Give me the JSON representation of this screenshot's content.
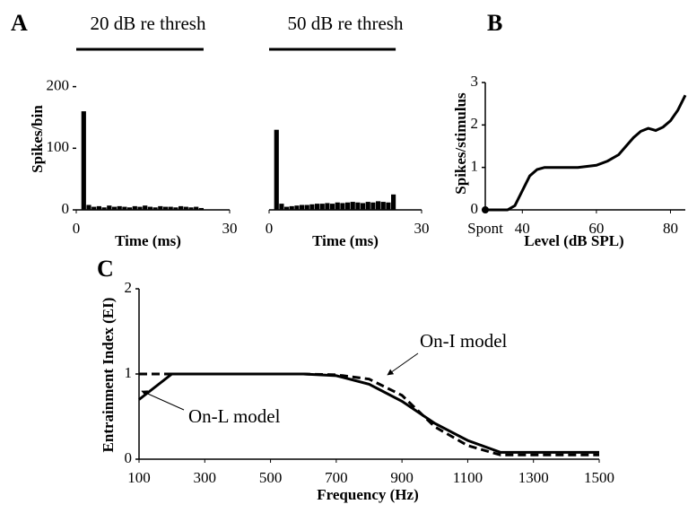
{
  "chart_data": [
    {
      "type": "histogram",
      "panel_label": "A",
      "title": "20 dB re thresh",
      "xlabel": "Time (ms)",
      "ylabel": "Spikes/bin",
      "bins": [
        0,
        1,
        2,
        3,
        4,
        5,
        6,
        7,
        8,
        9,
        10,
        11,
        12,
        13,
        14,
        15,
        16,
        17,
        18,
        19,
        20,
        21,
        22,
        23,
        24,
        25,
        26,
        27,
        28,
        29,
        30
      ],
      "counts": [
        0,
        160,
        8,
        5,
        6,
        4,
        7,
        5,
        6,
        5,
        4,
        6,
        5,
        7,
        5,
        4,
        6,
        5,
        5,
        4,
        6,
        5,
        4,
        5,
        3,
        0,
        0,
        0,
        0,
        0
      ],
      "color": "#000000",
      "xlim": [
        0,
        30
      ],
      "xticks": [
        0,
        30
      ],
      "ylim": [
        0,
        230
      ],
      "yticks": [
        0,
        100,
        200
      ]
    },
    {
      "type": "histogram",
      "title": "50 dB re thresh",
      "xlabel": "Time (ms)",
      "bins": [
        0,
        1,
        2,
        3,
        4,
        5,
        6,
        7,
        8,
        9,
        10,
        11,
        12,
        13,
        14,
        15,
        16,
        17,
        18,
        19,
        20,
        21,
        22,
        23,
        24,
        25,
        26,
        27,
        28,
        29,
        30
      ],
      "counts": [
        0,
        130,
        10,
        5,
        6,
        7,
        8,
        8,
        9,
        10,
        10,
        11,
        10,
        12,
        11,
        12,
        13,
        12,
        11,
        13,
        12,
        14,
        13,
        12,
        25,
        0,
        0,
        0,
        0,
        0
      ],
      "color": "#000000",
      "xlim": [
        0,
        30
      ],
      "xticks": [
        0,
        30
      ],
      "ylim": [
        0,
        230
      ]
    },
    {
      "type": "line",
      "panel_label": "B",
      "xlabel": "Level (dB SPL)",
      "ylabel": "Spikes/stimulus",
      "x": [
        30,
        36,
        38,
        40,
        42,
        44,
        46,
        50,
        55,
        60,
        63,
        66,
        68,
        70,
        72,
        74,
        76,
        78,
        80,
        82,
        84
      ],
      "values": [
        0,
        0,
        0.1,
        0.45,
        0.8,
        0.95,
        1,
        1,
        1,
        1.05,
        1.15,
        1.3,
        1.5,
        1.7,
        1.85,
        1.92,
        1.87,
        1.95,
        2.1,
        2.35,
        2.7
      ],
      "color": "#000000",
      "start_marker": true,
      "xlim": [
        30,
        84
      ],
      "xticks": [
        {
          "value": 30,
          "label": "Spont"
        },
        40,
        60,
        80
      ],
      "ylim": [
        0,
        3
      ],
      "yticks": [
        0,
        1,
        2,
        3
      ]
    },
    {
      "type": "line",
      "panel_label": "C",
      "xlabel": "Frequency (Hz)",
      "ylabel": "Entrainment Index (EI)",
      "x": [
        100,
        200,
        300,
        400,
        500,
        600,
        700,
        800,
        900,
        1000,
        1100,
        1200,
        1300,
        1400,
        1500
      ],
      "series": [
        {
          "name": "On-L model",
          "color": "#000000",
          "linestyle": "solid",
          "values": [
            0.7,
            1,
            1,
            1,
            1,
            1,
            0.98,
            0.88,
            0.68,
            0.42,
            0.22,
            0.08,
            0.08,
            0.08,
            0.08
          ]
        },
        {
          "name": "On-I model",
          "color": "#000000",
          "linestyle": "dashed",
          "values": [
            1,
            1,
            1,
            1,
            1,
            1,
            0.99,
            0.94,
            0.75,
            0.38,
            0.16,
            0.05,
            0.05,
            0.05,
            0.05
          ]
        }
      ],
      "xlim": [
        100,
        1500
      ],
      "xticks": [
        100,
        300,
        500,
        700,
        900,
        1100,
        1300,
        1500
      ],
      "ylim": [
        0,
        2
      ],
      "yticks": [
        0,
        1,
        2
      ]
    }
  ]
}
